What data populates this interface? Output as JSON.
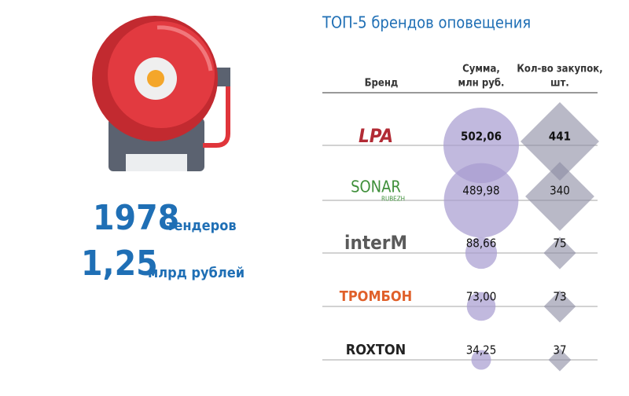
{
  "stats": {
    "tenders": "1978",
    "tenders_label": "тендеров",
    "amount": "1,25",
    "amount_label": "млрд рублей"
  },
  "table": {
    "title": "ТОП-5 брендов оповещения",
    "headers": [
      "Бренд",
      "Сумма,",
      "млн руб.",
      "Кол-во закупок,",
      "шт."
    ],
    "rows": [
      {
        "brand": "LPA",
        "sum": {
          "value": 502.06,
          "label": "502,06"
        },
        "count": 441
      },
      {
        "brand": "SONAR",
        "brand_sub": "RUBEZH",
        "sum": {
          "value": 489.98,
          "label": "489,98"
        },
        "count": 340
      },
      {
        "brand": "interM",
        "sum": {
          "value": 88.66,
          "label": "88,66"
        },
        "count": 75
      },
      {
        "brand": "ТРОМБОН",
        "sum": {
          "value": 73.0,
          "label": "73,00"
        },
        "count": 73
      },
      {
        "brand": "ROXTON",
        "sum": {
          "value": 34.25,
          "label": "34,25"
        },
        "count": 37
      }
    ]
  }
}
